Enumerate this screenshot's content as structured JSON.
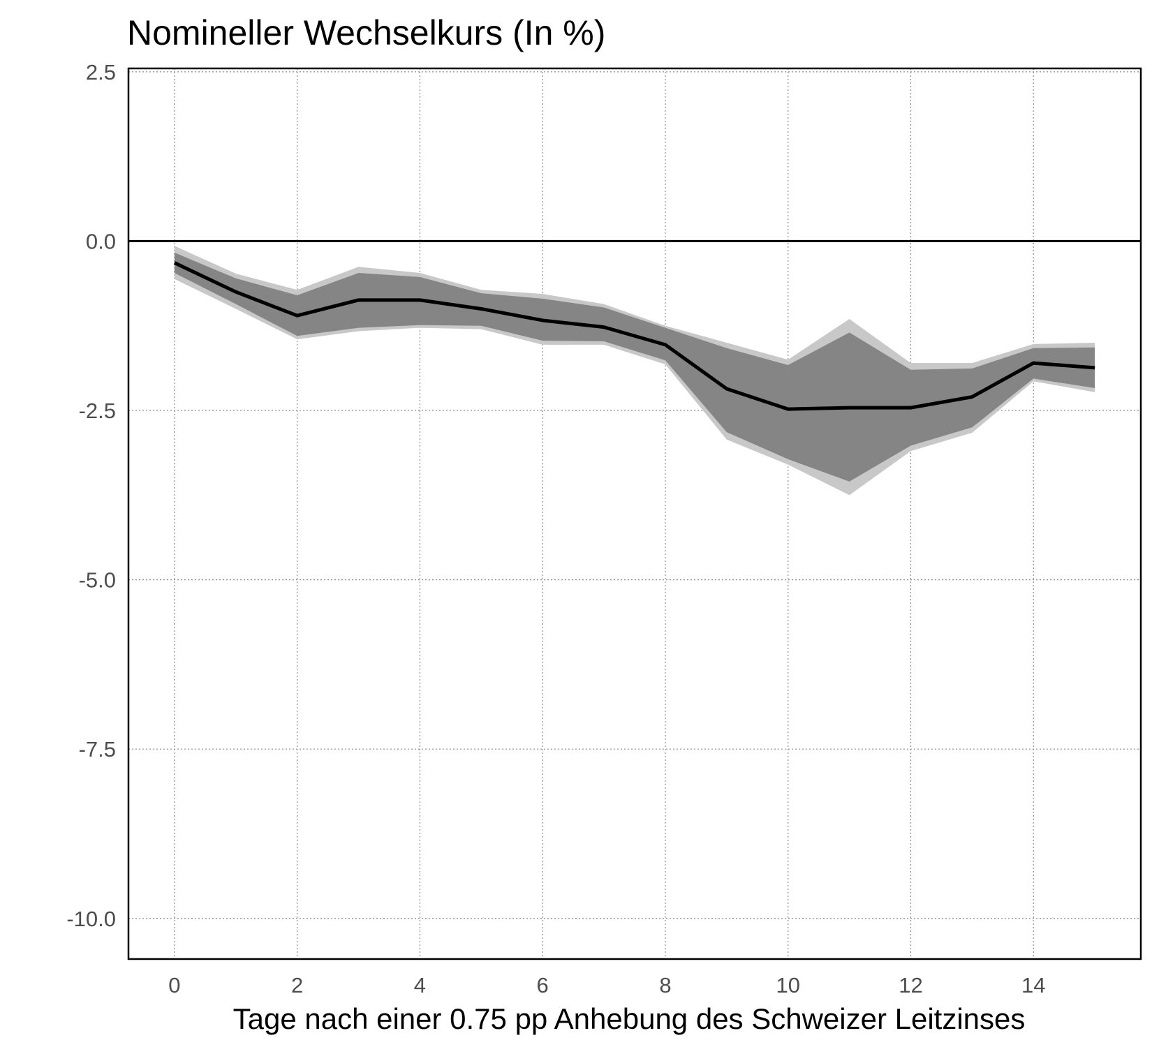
{
  "chart_data": {
    "type": "line",
    "title": "Nomineller Wechselkurs (In %)",
    "xlabel": "Tage nach einer 0.75 pp Anhebung des Schweizer Leitzinses",
    "ylabel": "",
    "x": [
      0,
      1,
      2,
      3,
      4,
      5,
      6,
      7,
      8,
      9,
      10,
      11,
      12,
      13,
      14,
      15
    ],
    "xlim": [
      -0.75,
      15.75
    ],
    "ylim": [
      -10.6,
      2.55
    ],
    "xticks": [
      0,
      2,
      4,
      6,
      8,
      10,
      12,
      14
    ],
    "xtick_labels": [
      "0",
      "2",
      "4",
      "6",
      "8",
      "10",
      "12",
      "14"
    ],
    "yticks": [
      2.5,
      0,
      -2.5,
      -5,
      -7.5,
      -10
    ],
    "ytick_labels": [
      "2.5",
      "0.0",
      "-2.5",
      "-5.0",
      "-7.5",
      "-10.0"
    ],
    "grid": true,
    "reference_line": 0,
    "series": [
      {
        "values": [
          -0.32,
          -0.75,
          -1.1,
          -0.87,
          -0.87,
          -1.0,
          -1.17,
          -1.27,
          -1.53,
          -2.18,
          -2.48,
          -2.46,
          -2.46,
          -2.3,
          -1.8,
          -1.87
        ]
      }
    ],
    "bands": [
      {
        "level": "outer",
        "color": "#c8c8c8",
        "upper": [
          -0.07,
          -0.48,
          -0.72,
          -0.38,
          -0.47,
          -0.72,
          -0.78,
          -0.93,
          -1.25,
          -1.5,
          -1.75,
          -1.15,
          -1.8,
          -1.8,
          -1.52,
          -1.5
        ],
        "lower": [
          -0.56,
          -1.0,
          -1.45,
          -1.33,
          -1.28,
          -1.3,
          -1.53,
          -1.53,
          -1.82,
          -2.93,
          -3.3,
          -3.75,
          -3.1,
          -2.83,
          -2.07,
          -2.23
        ]
      },
      {
        "level": "inner",
        "color": "#858585",
        "upper": [
          -0.17,
          -0.55,
          -0.8,
          -0.47,
          -0.53,
          -0.77,
          -0.85,
          -0.98,
          -1.28,
          -1.58,
          -1.83,
          -1.35,
          -1.9,
          -1.88,
          -1.58,
          -1.57
        ],
        "lower": [
          -0.47,
          -0.93,
          -1.4,
          -1.28,
          -1.24,
          -1.25,
          -1.47,
          -1.48,
          -1.76,
          -2.82,
          -3.22,
          -3.55,
          -3.02,
          -2.75,
          -2.03,
          -2.17
        ]
      }
    ]
  }
}
